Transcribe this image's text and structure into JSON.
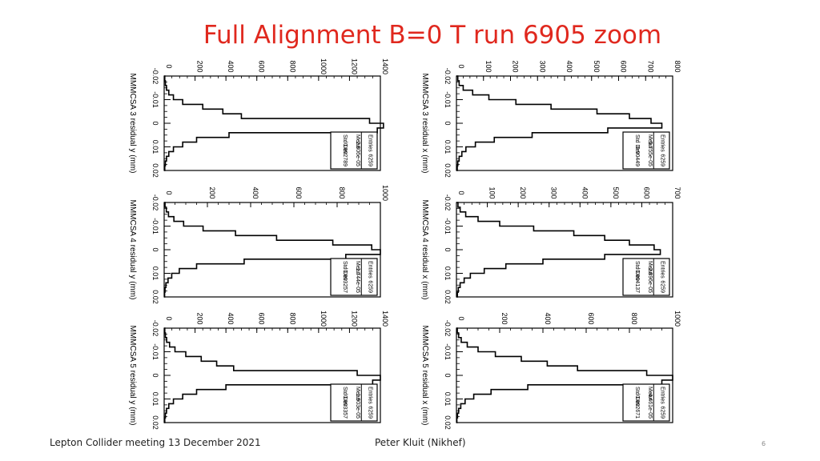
{
  "slide": {
    "title": "Full Alignment B=0 T run 6905 zoom",
    "footer_left": "Lepton Collider meeting 13 December 2021",
    "footer_center": "Peter Kluit (Nikhef)",
    "page_number": "6"
  },
  "chart_data": [
    {
      "type": "bar",
      "xlabel": "MMMCSA 3 residual y (mm)",
      "xlim": [
        -0.02,
        0.02
      ],
      "x_ticks": [
        "-0.02",
        "-0.01",
        "0",
        "0.01",
        "0.02"
      ],
      "ylim": [
        0,
        1400
      ],
      "y_ticks": [
        "0",
        "200",
        "400",
        "600",
        "800",
        "1000",
        "1200",
        "1400"
      ],
      "x": [
        -0.02,
        -0.018,
        -0.016,
        -0.014,
        -0.012,
        -0.01,
        -0.008,
        -0.006,
        -0.004,
        -0.002,
        0,
        0.002,
        0.004,
        0.006,
        0.008,
        0.01,
        0.012,
        0.014,
        0.016,
        0.018
      ],
      "values": [
        4,
        8,
        15,
        30,
        60,
        120,
        250,
        380,
        500,
        1330,
        1420,
        1380,
        420,
        210,
        120,
        60,
        30,
        15,
        8,
        4
      ],
      "stats": {
        "entries_label": "Entries",
        "entries": "6259",
        "mean_label": "Mean",
        "mean": "2.806e-05",
        "std_label": "Std Dev",
        "std": "0.002789"
      }
    },
    {
      "type": "bar",
      "xlabel": "MMMCSA 3 residual x (mm)",
      "xlim": [
        -0.02,
        0.02
      ],
      "x_ticks": [
        "-0.02",
        "-0.01",
        "0",
        "0.01",
        "0.02"
      ],
      "ylim": [
        0,
        800
      ],
      "y_ticks": [
        "0",
        "100",
        "200",
        "300",
        "400",
        "500",
        "600",
        "700",
        "800"
      ],
      "x": [
        -0.02,
        -0.018,
        -0.016,
        -0.014,
        -0.012,
        -0.01,
        -0.008,
        -0.006,
        -0.004,
        -0.002,
        0,
        0.002,
        0.004,
        0.006,
        0.008,
        0.01,
        0.012,
        0.014,
        0.016,
        0.018
      ],
      "values": [
        5,
        10,
        25,
        60,
        120,
        220,
        350,
        520,
        640,
        720,
        760,
        560,
        280,
        140,
        70,
        35,
        20,
        10,
        5,
        3
      ],
      "stats": {
        "entries_label": "Entries",
        "entries": "6259",
        "mean_label": "Mean",
        "mean": "5.755e-05",
        "std_label": "Std Dev",
        "std": "0.00449"
      }
    },
    {
      "type": "bar",
      "xlabel": "MMMCSA 4 residual y (mm)",
      "xlim": [
        -0.02,
        0.02
      ],
      "x_ticks": [
        "-0.02",
        "-0.01",
        "0",
        "0.01",
        "0.02"
      ],
      "ylim": [
        0,
        1000
      ],
      "y_ticks": [
        "0",
        "200",
        "400",
        "600",
        "800",
        "1000"
      ],
      "x": [
        -0.02,
        -0.018,
        -0.016,
        -0.014,
        -0.012,
        -0.01,
        -0.008,
        -0.006,
        -0.004,
        -0.002,
        0,
        0.002,
        0.004,
        0.006,
        0.008,
        0.01,
        0.012,
        0.014,
        0.016,
        0.018
      ],
      "values": [
        4,
        10,
        20,
        45,
        90,
        180,
        330,
        520,
        780,
        960,
        1000,
        840,
        370,
        150,
        70,
        35,
        18,
        8,
        4,
        2
      ],
      "stats": {
        "entries_label": "Entries",
        "entries": "6259",
        "mean_label": "Mean",
        "mean": "1.744e-05",
        "std_label": "Std Dev",
        "std": "0.003257"
      }
    },
    {
      "type": "bar",
      "xlabel": "MMMCSA 4 residual x (mm)",
      "xlim": [
        -0.02,
        0.02
      ],
      "x_ticks": [
        "-0.02",
        "-0.01",
        "0",
        "0.01",
        "0.02"
      ],
      "ylim": [
        0,
        700
      ],
      "y_ticks": [
        "0",
        "100",
        "200",
        "300",
        "400",
        "500",
        "600",
        "700"
      ],
      "x": [
        -0.02,
        -0.018,
        -0.016,
        -0.014,
        -0.012,
        -0.01,
        -0.008,
        -0.006,
        -0.004,
        -0.002,
        0,
        0.002,
        0.004,
        0.006,
        0.008,
        0.01,
        0.012,
        0.014,
        0.016,
        0.018
      ],
      "values": [
        5,
        12,
        30,
        70,
        140,
        250,
        380,
        480,
        560,
        640,
        660,
        480,
        280,
        160,
        90,
        45,
        25,
        12,
        6,
        3
      ],
      "stats": {
        "entries_label": "Entries",
        "entries": "6259",
        "mean_label": "Mean",
        "mean": "2.896e-05",
        "std_label": "Std Dev",
        "std": "0.004137"
      }
    },
    {
      "type": "bar",
      "xlabel": "MMMCSA 5 residual y (mm)",
      "xlim": [
        -0.02,
        0.02
      ],
      "x_ticks": [
        "-0.02",
        "-0.01",
        "0",
        "0.01",
        "0.02"
      ],
      "ylim": [
        0,
        1400
      ],
      "y_ticks": [
        "0",
        "200",
        "400",
        "600",
        "800",
        "1000",
        "1200",
        "1400"
      ],
      "x": [
        -0.02,
        -0.018,
        -0.016,
        -0.014,
        -0.012,
        -0.01,
        -0.008,
        -0.006,
        -0.004,
        -0.002,
        0,
        0.002,
        0.004,
        0.006,
        0.008,
        0.01,
        0.012,
        0.014,
        0.016,
        0.018
      ],
      "values": [
        4,
        8,
        16,
        35,
        70,
        140,
        240,
        340,
        450,
        1250,
        1400,
        1350,
        400,
        210,
        120,
        60,
        30,
        15,
        8,
        4
      ],
      "stats": {
        "entries_label": "Entries",
        "entries": "6259",
        "mean_label": "Mean",
        "mean": "-1.903e-05",
        "std_label": "Std Dev",
        "std": "0.003357"
      }
    },
    {
      "type": "bar",
      "xlabel": "MMMCSA 5 residual x (mm)",
      "xlim": [
        -0.02,
        0.02
      ],
      "x_ticks": [
        "-0.02",
        "-0.01",
        "0",
        "0.01",
        "0.02"
      ],
      "ylim": [
        0,
        1000
      ],
      "y_ticks": [
        "0",
        "200",
        "400",
        "600",
        "800",
        "1000"
      ],
      "x": [
        -0.02,
        -0.018,
        -0.016,
        -0.014,
        -0.012,
        -0.01,
        -0.008,
        -0.006,
        -0.004,
        -0.002,
        0,
        0.002,
        0.004,
        0.006,
        0.008,
        0.01,
        0.012,
        0.014,
        0.016,
        0.018
      ],
      "values": [
        4,
        10,
        22,
        50,
        100,
        180,
        300,
        420,
        560,
        880,
        1000,
        950,
        330,
        160,
        80,
        40,
        20,
        10,
        5,
        2
      ],
      "stats": {
        "entries_label": "Entries",
        "entries": "6259",
        "mean_label": "Mean",
        "mean": "-4.461e-05",
        "std_label": "Std Dev",
        "std": "0.002671"
      }
    }
  ]
}
